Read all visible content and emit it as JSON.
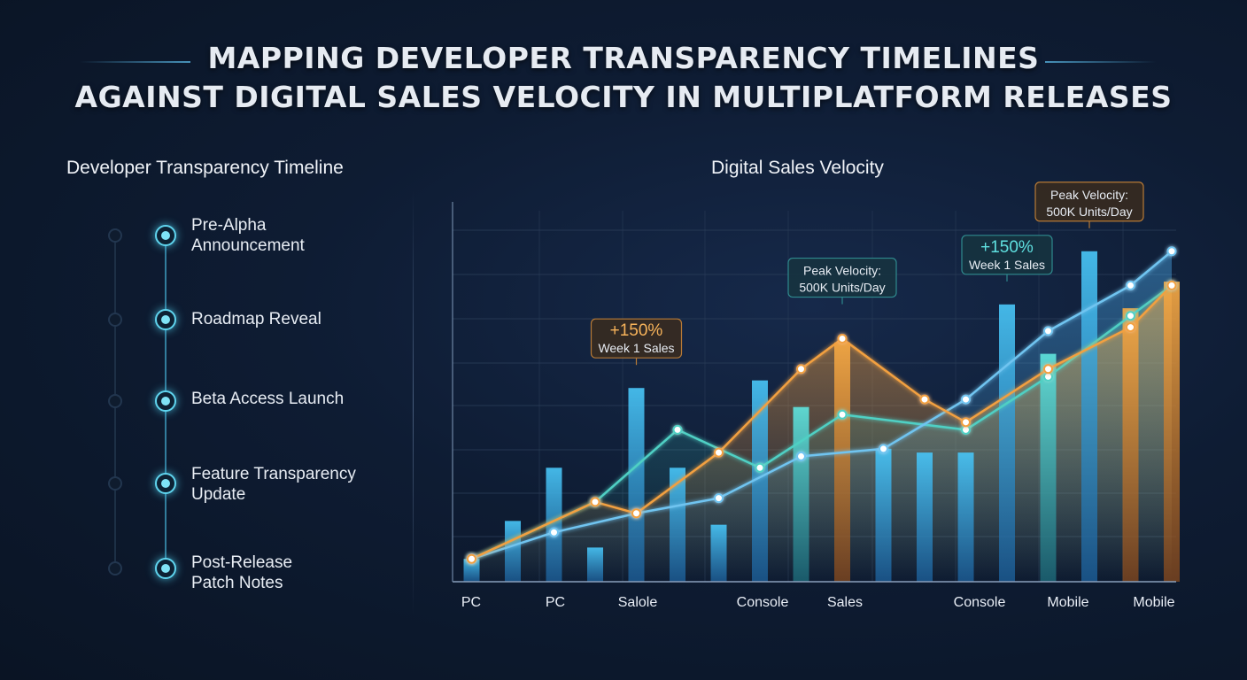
{
  "title": {
    "line1": "MAPPING DEVELOPER TRANSPARENCY TIMELINES",
    "line2": "AGAINST DIGITAL SALES VELOCITY IN MULTIPLATFORM RELEASES"
  },
  "timeline": {
    "title": "Developer Transparency Timeline",
    "items": [
      {
        "label": "Pre-Alpha\nAnnouncement"
      },
      {
        "label": "Roadmap Reveal"
      },
      {
        "label": "Beta Access Launch"
      },
      {
        "label": "Feature Transparency\nUpdate"
      },
      {
        "label": "Post-Release\nPatch Notes"
      }
    ]
  },
  "colors": {
    "blue_bar": "#3db8ee",
    "teal_bar": "#4fd8d8",
    "orange": "#f2a040",
    "teal_line": "#4fd0c4",
    "blue_line": "#6fc4f0",
    "timeline_accent": "#5fd4ee"
  },
  "chart_data": {
    "type": "bar",
    "title": "Digital Sales Velocity",
    "x_tick_labels": [
      "PC",
      "PC",
      "Salole",
      "Console",
      "Sales",
      "Console",
      "Mobile",
      "Mobile"
    ],
    "ylim": [
      0,
      100
    ],
    "grid": true,
    "bars": [
      {
        "x": 1,
        "value": 6,
        "color": "blue"
      },
      {
        "x": 2,
        "value": 16,
        "color": "blue"
      },
      {
        "x": 3,
        "value": 30,
        "color": "blue"
      },
      {
        "x": 4,
        "value": 9,
        "color": "blue"
      },
      {
        "x": 5,
        "value": 51,
        "color": "blue"
      },
      {
        "x": 6,
        "value": 30,
        "color": "blue"
      },
      {
        "x": 7,
        "value": 15,
        "color": "blue"
      },
      {
        "x": 8,
        "value": 53,
        "color": "blue"
      },
      {
        "x": 9,
        "value": 46,
        "color": "teal"
      },
      {
        "x": 10,
        "value": 63,
        "color": "orange"
      },
      {
        "x": 11,
        "value": 35,
        "color": "blue"
      },
      {
        "x": 12,
        "value": 34,
        "color": "blue"
      },
      {
        "x": 13,
        "value": 34,
        "color": "blue"
      },
      {
        "x": 14,
        "value": 73,
        "color": "blue"
      },
      {
        "x": 15,
        "value": 60,
        "color": "teal"
      },
      {
        "x": 16,
        "value": 87,
        "color": "blue"
      },
      {
        "x": 17,
        "value": 72,
        "color": "orange"
      },
      {
        "x": 18,
        "value": 79,
        "color": "orange"
      }
    ],
    "series": [
      {
        "color": "teal",
        "x": [
          1,
          4,
          6,
          8,
          10,
          13,
          15,
          17,
          18
        ],
        "values": [
          6,
          21,
          40,
          30,
          44,
          40,
          54,
          70,
          78
        ]
      },
      {
        "color": "blue",
        "x": [
          1,
          3,
          5,
          7,
          9,
          11,
          13,
          15,
          17,
          18
        ],
        "values": [
          6,
          13,
          18,
          22,
          33,
          35,
          48,
          66,
          78,
          87
        ]
      },
      {
        "color": "orange",
        "x": [
          1,
          4,
          5,
          7,
          9,
          10,
          12,
          13,
          15,
          17,
          18
        ],
        "values": [
          6,
          21,
          18,
          34,
          56,
          64,
          48,
          42,
          56,
          67,
          78
        ]
      }
    ],
    "annotations": [
      {
        "line1": "+150%",
        "line2": "Week 1 Sales",
        "style": "orange",
        "x": 5,
        "value": 51
      },
      {
        "line1": "Peak Velocity:",
        "line2": "500K Units/Day",
        "style": "teal",
        "x": 10,
        "value": 67
      },
      {
        "line1": "+150%",
        "line2": "Week 1 Sales",
        "style": "teal",
        "x": 14,
        "value": 73
      },
      {
        "line1": "Peak Velocity:",
        "line2": "500K Units/Day",
        "style": "orange",
        "x": 16,
        "value": 87
      }
    ]
  }
}
